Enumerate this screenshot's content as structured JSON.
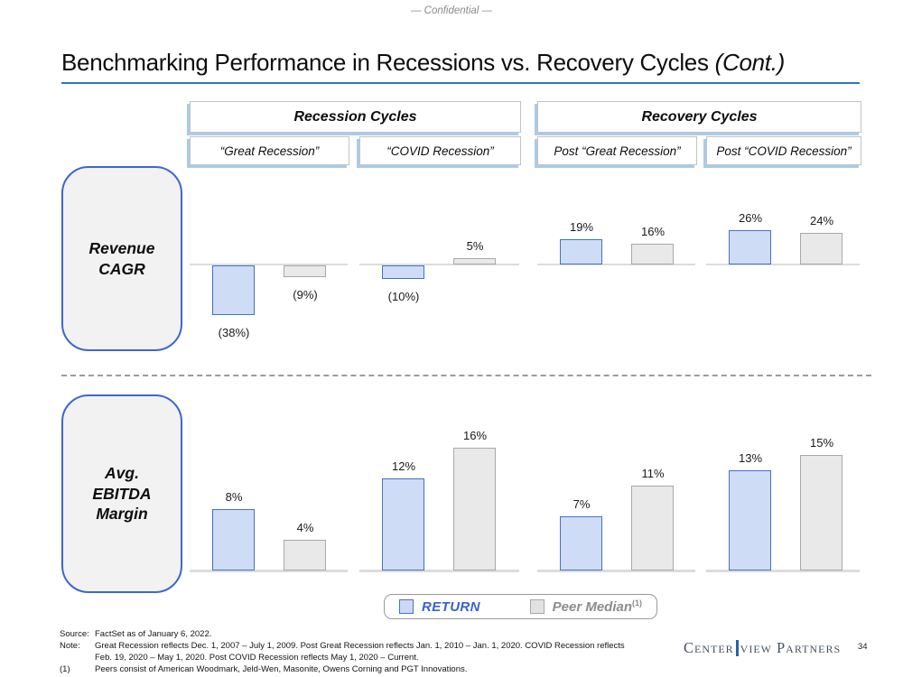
{
  "slide": {
    "confidential": "— Confidential —",
    "title": "Benchmarking Performance in Recessions vs. Recovery Cycles",
    "title_suffix": "(Cont.)",
    "page_number": "34",
    "logo": {
      "part1": "Center",
      "part2": "view",
      "part3": "Partners"
    }
  },
  "headers": {
    "recession_cycles": "Recession Cycles",
    "recovery_cycles": "Recovery Cycles",
    "col1": "“Great Recession”",
    "col2": "“COVID Recession”",
    "col3": "Post “Great Recession”",
    "col4": "Post “COVID Recession”"
  },
  "row_labels": {
    "revenue": "Revenue CAGR",
    "ebitda": "Avg. EBITDA Margin"
  },
  "chart_data": [
    {
      "type": "bar",
      "title": "Revenue CAGR",
      "categories": [
        "Great Recession",
        "COVID Recession",
        "Post Great Recession",
        "Post COVID Recession"
      ],
      "series": [
        {
          "name": "RETURN",
          "values": [
            -38,
            -10,
            19,
            26
          ],
          "labels": [
            "(38%)",
            "(10%)",
            "19%",
            "26%"
          ]
        },
        {
          "name": "Peer Median",
          "values": [
            -9,
            5,
            16,
            24
          ],
          "labels": [
            "(9%)",
            "5%",
            "16%",
            "24%"
          ]
        }
      ],
      "unit": "%",
      "ylim": [
        -40,
        30
      ],
      "grid": false,
      "axis_line": true,
      "legend_position": "bottom"
    },
    {
      "type": "bar",
      "title": "Avg. EBITDA Margin",
      "categories": [
        "Great Recession",
        "COVID Recession",
        "Post Great Recession",
        "Post COVID Recession"
      ],
      "series": [
        {
          "name": "RETURN",
          "values": [
            8,
            12,
            7,
            13
          ],
          "labels": [
            "8%",
            "12%",
            "7%",
            "13%"
          ]
        },
        {
          "name": "Peer Median",
          "values": [
            4,
            16,
            11,
            15
          ],
          "labels": [
            "4%",
            "16%",
            "11%",
            "15%"
          ]
        }
      ],
      "unit": "%",
      "ylim": [
        0,
        18
      ],
      "grid": false,
      "axis_line": true,
      "legend_position": "bottom"
    }
  ],
  "legend": {
    "return_label": "RETURN",
    "peer_label": "Peer Median",
    "peer_superscript": "(1)"
  },
  "footer": {
    "source_label": "Source:",
    "source_text": "FactSet as of January 6, 2022.",
    "note_label": "Note:",
    "note_text": "Great Recession reflects Dec. 1, 2007 – July 1, 2009. Post Great Recession reflects Jan. 1, 2010 – Jan. 1, 2020. COVID Recession reflects Feb. 19, 2020 – May 1, 2020. Post COVID Recession reflects May 1, 2020 – Current.",
    "fn1_label": "(1)",
    "fn1_text": "Peers consist of American Woodmark, Jeld-Wen, Masonite, Owens Corning and PGT Innovations."
  },
  "colors": {
    "title_underline": "#2e75b6",
    "return_fill": "#cfdcf5",
    "return_border": "#4472c4",
    "peer_fill": "#e9e9e9",
    "peer_border": "#a8a8a8",
    "side_box_border": "#3e66d0",
    "side_box_fill": "#f2f2f2",
    "header_shadow": "#aacbe9",
    "return_text": "#3a5fd0",
    "peer_text": "#8c8c8c",
    "logo_bar": "#2e5fa8"
  }
}
